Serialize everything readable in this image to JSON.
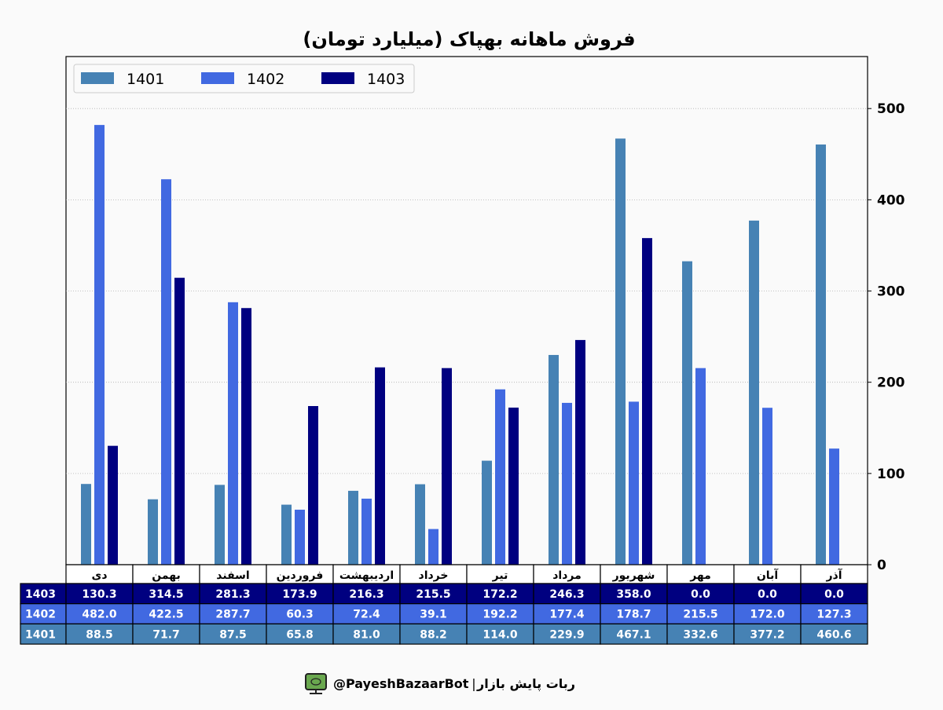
{
  "chart_data": {
    "type": "bar",
    "title": "فروش ماهانه بهپاک (میلیارد تومان)",
    "categories": [
      "دی",
      "بهمن",
      "اسفند",
      "فروردین",
      "اردیبهشت",
      "خرداد",
      "تیر",
      "مرداد",
      "شهریور",
      "مهر",
      "آبان",
      "آذر"
    ],
    "series": [
      {
        "name": "1401",
        "color": "#4682b4",
        "values": [
          88.5,
          71.7,
          87.5,
          65.8,
          81.0,
          88.2,
          114.0,
          229.9,
          467.1,
          332.6,
          377.2,
          460.6
        ]
      },
      {
        "name": "1402",
        "color": "#4169e1",
        "values": [
          482.0,
          422.5,
          287.7,
          60.3,
          72.4,
          39.1,
          192.2,
          177.4,
          178.7,
          215.5,
          172.0,
          127.3
        ]
      },
      {
        "name": "1403",
        "color": "#000080",
        "values": [
          130.3,
          314.5,
          281.3,
          173.9,
          216.3,
          215.5,
          172.2,
          246.3,
          358.0,
          0.0,
          0.0,
          0.0
        ]
      }
    ],
    "table_row_order": [
      "1403",
      "1402",
      "1401"
    ],
    "yticks": [
      0,
      100,
      200,
      300,
      400,
      500
    ],
    "ylim": [
      0,
      557
    ],
    "y_axis_side": "right",
    "grid": "horizontal dotted",
    "legend": "top-left"
  },
  "footer": {
    "bot_name": "ربات پایش بازار",
    "separator": "|",
    "handle": "@PayeshBazaarBot",
    "icon": "robot-monitor-icon"
  }
}
